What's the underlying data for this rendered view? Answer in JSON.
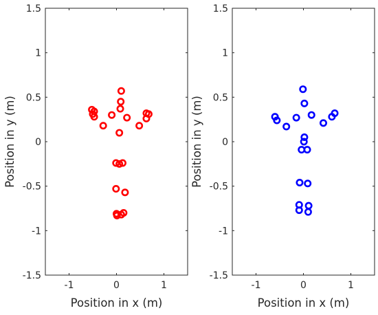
{
  "chart_data": [
    {
      "type": "scatter",
      "xlabel": "Position in x (m)",
      "ylabel": "Position in y (m)",
      "xlim": [
        -1.5,
        1.5
      ],
      "ylim": [
        -1.5,
        1.5
      ],
      "xticks": [
        "-1",
        "0",
        "1"
      ],
      "yticks": [
        "-1.5",
        "-1",
        "-0.5",
        "0",
        "0.5",
        "1",
        "1.5"
      ],
      "grid": false,
      "marker": "circle",
      "color": "#ff0000",
      "points": [
        {
          "x": 0.1,
          "y": 0.57
        },
        {
          "x": 0.09,
          "y": 0.45
        },
        {
          "x": 0.08,
          "y": 0.37
        },
        {
          "x": -0.52,
          "y": 0.36
        },
        {
          "x": -0.47,
          "y": 0.34
        },
        {
          "x": -0.5,
          "y": 0.31
        },
        {
          "x": -0.47,
          "y": 0.28
        },
        {
          "x": -0.1,
          "y": 0.3
        },
        {
          "x": 0.22,
          "y": 0.27
        },
        {
          "x": 0.63,
          "y": 0.32
        },
        {
          "x": 0.68,
          "y": 0.31
        },
        {
          "x": 0.63,
          "y": 0.26
        },
        {
          "x": -0.28,
          "y": 0.18
        },
        {
          "x": 0.48,
          "y": 0.18
        },
        {
          "x": 0.06,
          "y": 0.1
        },
        {
          "x": -0.01,
          "y": -0.24
        },
        {
          "x": 0.06,
          "y": -0.25
        },
        {
          "x": 0.13,
          "y": -0.24
        },
        {
          "x": -0.01,
          "y": -0.53
        },
        {
          "x": 0.18,
          "y": -0.57
        },
        {
          "x": 0.0,
          "y": -0.81
        },
        {
          "x": 0.01,
          "y": -0.83
        },
        {
          "x": 0.1,
          "y": -0.82
        },
        {
          "x": 0.15,
          "y": -0.8
        }
      ]
    },
    {
      "type": "scatter",
      "xlabel": "Position in x (m)",
      "ylabel": "Position in y (m)",
      "xlim": [
        -1.5,
        1.5
      ],
      "ylim": [
        -1.5,
        1.5
      ],
      "xticks": [
        "-1",
        "0",
        "1"
      ],
      "yticks": [
        "-1.5",
        "-1",
        "-0.5",
        "0",
        "0.5",
        "1",
        "1.5"
      ],
      "grid": false,
      "marker": "circle",
      "color": "#0000ff",
      "points": [
        {
          "x": -0.01,
          "y": 0.59
        },
        {
          "x": 0.02,
          "y": 0.43
        },
        {
          "x": 0.17,
          "y": 0.3
        },
        {
          "x": -0.6,
          "y": 0.28
        },
        {
          "x": -0.56,
          "y": 0.24
        },
        {
          "x": -0.15,
          "y": 0.27
        },
        {
          "x": -0.36,
          "y": 0.17
        },
        {
          "x": 0.42,
          "y": 0.21
        },
        {
          "x": 0.6,
          "y": 0.28
        },
        {
          "x": 0.66,
          "y": 0.32
        },
        {
          "x": 0.02,
          "y": 0.05
        },
        {
          "x": 0.01,
          "y": 0.0
        },
        {
          "x": -0.04,
          "y": -0.09
        },
        {
          "x": 0.08,
          "y": -0.09
        },
        {
          "x": -0.08,
          "y": -0.46
        },
        {
          "x": 0.09,
          "y": -0.47
        },
        {
          "x": -0.09,
          "y": -0.71
        },
        {
          "x": 0.11,
          "y": -0.72
        },
        {
          "x": -0.09,
          "y": -0.77
        },
        {
          "x": 0.1,
          "y": -0.79
        }
      ]
    }
  ]
}
